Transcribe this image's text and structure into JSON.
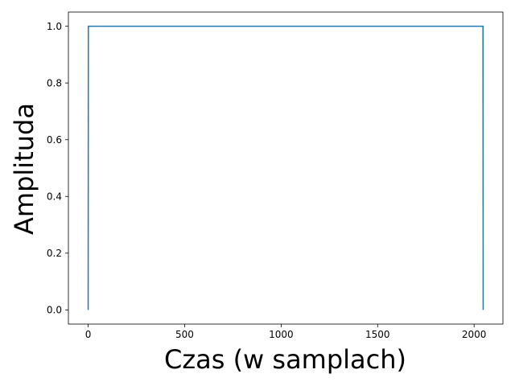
{
  "chart_data": {
    "type": "line",
    "title": "",
    "xlabel": "Czas (w samplach)",
    "ylabel": "Amplituda",
    "xlim": [
      -102.35,
      2149.35
    ],
    "ylim": [
      -0.05,
      1.05
    ],
    "xticks": [
      0,
      500,
      1000,
      1500,
      2000
    ],
    "xtick_labels": [
      "0",
      "500",
      "1000",
      "1500",
      "2000"
    ],
    "yticks": [
      0.0,
      0.2,
      0.4,
      0.6,
      0.8,
      1.0
    ],
    "ytick_labels": [
      "0.0",
      "0.2",
      "0.4",
      "0.6",
      "0.8",
      "1.0"
    ],
    "grid": false,
    "series": [
      {
        "color": "#1f77b4",
        "x": [
          0,
          1,
          2046,
          2047
        ],
        "y": [
          0,
          1,
          1,
          0
        ]
      }
    ]
  }
}
